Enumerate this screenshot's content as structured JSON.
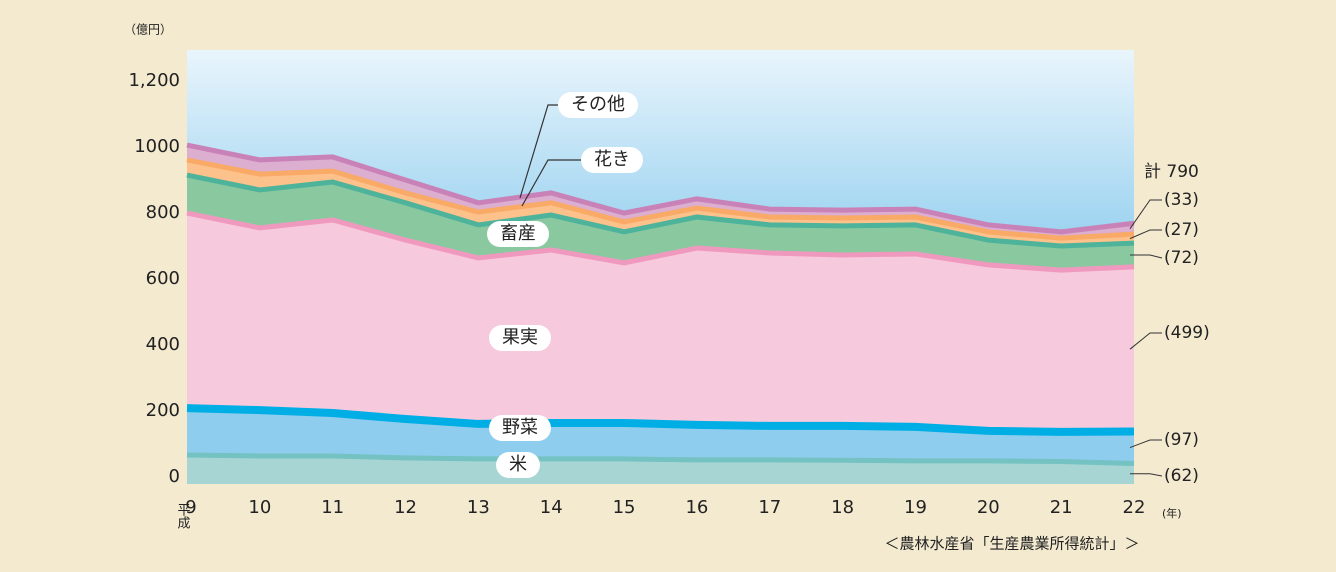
{
  "chart_data": {
    "type": "stacked_area",
    "unit_label": "（億円）",
    "x_unit_label": "(年)",
    "era_label": "平成",
    "source": "＜農林水産省「生産農業所得統計」＞",
    "total_label": "計 790",
    "categories": [
      "9",
      "10",
      "11",
      "12",
      "13",
      "14",
      "15",
      "16",
      "17",
      "18",
      "19",
      "20",
      "21",
      "22"
    ],
    "ylim": [
      0,
      1315
    ],
    "yticks": [
      0,
      200,
      400,
      600,
      800,
      1000,
      {
        "value": 1200,
        "label": "1,200"
      }
    ],
    "series": [
      {
        "name": "米",
        "color": "#a6d5d3",
        "edge": "#74c2c2",
        "values": [
          88,
          85,
          85,
          79,
          76,
          76,
          76,
          73,
          73,
          72,
          70,
          70,
          68,
          62
        ],
        "value_labels": [
          null,
          null,
          null,
          null,
          null,
          null,
          null,
          null,
          null,
          null,
          null,
          null,
          null,
          "(62)"
        ]
      },
      {
        "name": "野菜",
        "color": "#8fcdee",
        "edge": "#00aee6",
        "values": [
          142,
          139,
          130,
          118,
          106,
          109,
          109,
          106,
          103,
          104,
          103,
          91,
          90,
          97
        ],
        "value_labels": [
          null,
          null,
          null,
          null,
          null,
          null,
          null,
          null,
          null,
          null,
          null,
          null,
          null,
          "(97)"
        ]
      },
      {
        "name": "果実",
        "color": "#f7c9dd",
        "edge": "#f099bf",
        "values": [
          591,
          552,
          585,
          542,
          503,
          524,
          485,
          536,
          524,
          518,
          524,
          503,
          490,
          499
        ],
        "value_labels": [
          null,
          null,
          null,
          null,
          null,
          null,
          null,
          null,
          null,
          null,
          null,
          null,
          null,
          "(499)"
        ]
      },
      {
        "name": "畜産",
        "color": "#8ac8a0",
        "edge": "#4db39a",
        "values": [
          115,
          115,
          115,
          113,
          100,
          106,
          94,
          94,
          85,
          88,
          88,
          75,
          73,
          72
        ],
        "value_labels": [
          null,
          null,
          null,
          null,
          null,
          null,
          null,
          null,
          null,
          null,
          null,
          null,
          null,
          "(72)"
        ]
      },
      {
        "name": "花き",
        "color": "#fdc18c",
        "edge": "#f8aa66",
        "values": [
          46,
          48,
          33,
          30,
          39,
          37,
          30,
          27,
          24,
          24,
          24,
          25,
          24,
          27
        ],
        "value_labels": [
          null,
          null,
          null,
          null,
          null,
          null,
          null,
          null,
          null,
          null,
          null,
          null,
          null,
          "(27)"
        ]
      },
      {
        "name": "その他",
        "color": "#dcaed0",
        "edge": "#c982b8",
        "values": [
          45,
          43,
          43,
          39,
          28,
          30,
          27,
          28,
          24,
          24,
          24,
          21,
          19,
          33
        ],
        "value_labels": [
          null,
          null,
          null,
          null,
          null,
          null,
          null,
          null,
          null,
          null,
          null,
          null,
          null,
          "(33)"
        ]
      }
    ]
  }
}
